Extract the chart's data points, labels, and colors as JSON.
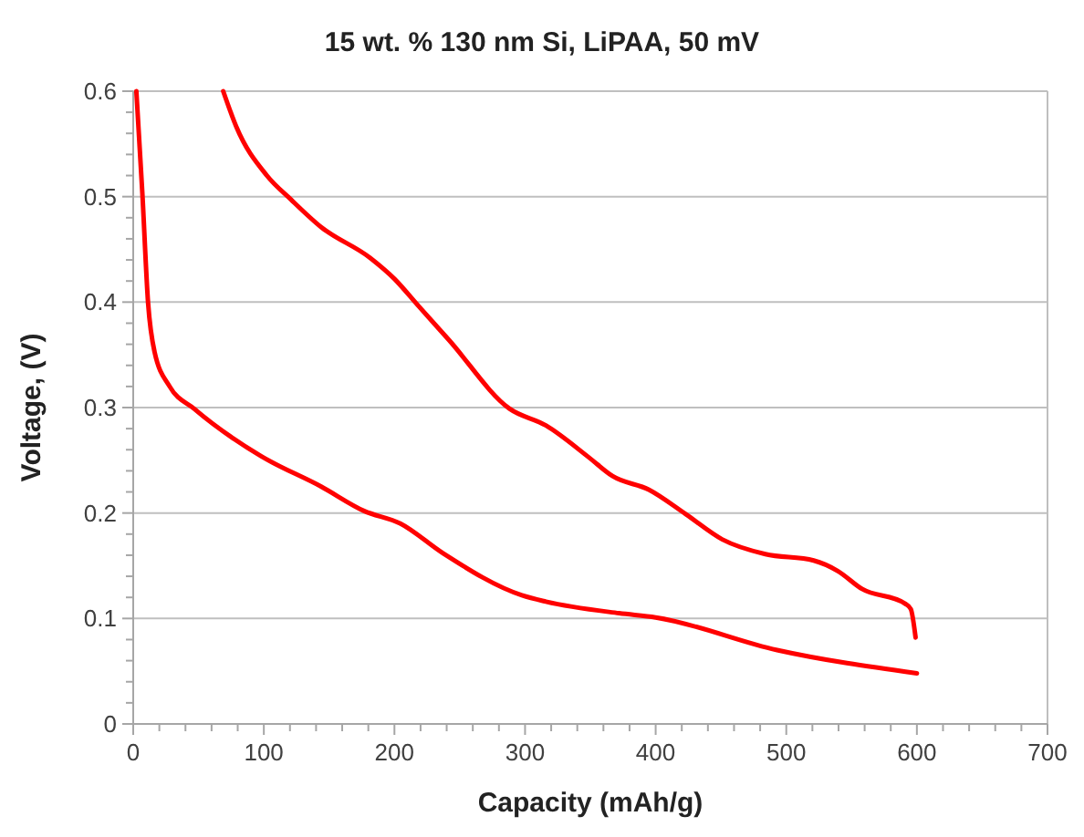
{
  "chart_data": {
    "type": "line",
    "title": "15 wt. % 130 nm Si, LiPAA, 50 mV",
    "xlabel": "Capacity (mAh/g)",
    "ylabel": "Voltage, (V)",
    "xlim": [
      0,
      700
    ],
    "ylim": [
      0,
      0.6
    ],
    "xticks": [
      0,
      {
        "value": 20,
        "label": null
      },
      {
        "value": 40,
        "label": null
      },
      {
        "value": 60,
        "label": null
      },
      {
        "value": 80,
        "label": null
      },
      100,
      {
        "value": 120,
        "label": null
      },
      {
        "value": 140,
        "label": null
      },
      {
        "value": 160,
        "label": null
      },
      {
        "value": 180,
        "label": null
      },
      200,
      {
        "value": 220,
        "label": null
      },
      {
        "value": 240,
        "label": null
      },
      {
        "value": 260,
        "label": null
      },
      {
        "value": 280,
        "label": null
      },
      300,
      {
        "value": 320,
        "label": null
      },
      {
        "value": 340,
        "label": null
      },
      {
        "value": 360,
        "label": null
      },
      {
        "value": 380,
        "label": null
      },
      400,
      {
        "value": 420,
        "label": null
      },
      {
        "value": 440,
        "label": null
      },
      {
        "value": 460,
        "label": null
      },
      {
        "value": 480,
        "label": null
      },
      500,
      {
        "value": 520,
        "label": null
      },
      {
        "value": 540,
        "label": null
      },
      {
        "value": 560,
        "label": null
      },
      {
        "value": 580,
        "label": null
      },
      600,
      {
        "value": 620,
        "label": null
      },
      {
        "value": 640,
        "label": null
      },
      {
        "value": 660,
        "label": null
      },
      {
        "value": 680,
        "label": null
      },
      700
    ],
    "yticks": [
      0,
      {
        "value": 0.02,
        "label": null
      },
      {
        "value": 0.04,
        "label": null
      },
      {
        "value": 0.06,
        "label": null
      },
      {
        "value": 0.08,
        "label": null
      },
      0.1,
      {
        "value": 0.12,
        "label": null
      },
      {
        "value": 0.14,
        "label": null
      },
      {
        "value": 0.16,
        "label": null
      },
      {
        "value": 0.18,
        "label": null
      },
      0.2,
      {
        "value": 0.22,
        "label": null
      },
      {
        "value": 0.24,
        "label": null
      },
      {
        "value": 0.26,
        "label": null
      },
      {
        "value": 0.28,
        "label": null
      },
      0.3,
      {
        "value": 0.32,
        "label": null
      },
      {
        "value": 0.34,
        "label": null
      },
      {
        "value": 0.36,
        "label": null
      },
      {
        "value": 0.38,
        "label": null
      },
      0.4,
      {
        "value": 0.42,
        "label": null
      },
      {
        "value": 0.44,
        "label": null
      },
      {
        "value": 0.46,
        "label": null
      },
      {
        "value": 0.48,
        "label": null
      },
      0.5,
      {
        "value": 0.52,
        "label": null
      },
      {
        "value": 0.54,
        "label": null
      },
      {
        "value": 0.56,
        "label": null
      },
      {
        "value": 0.58,
        "label": null
      },
      0.6
    ],
    "grid": "y",
    "marker": "none",
    "line_style": "solid",
    "series": [
      {
        "color": "#ff0000",
        "x": [
          2.4,
          7,
          11.4,
          16.3,
          27.9,
          46.5,
          97.7,
          144,
          176.7,
          204.6,
          237,
          297.6,
          316,
          372,
          400,
          493,
          600
        ],
        "values": [
          0.6,
          0.503,
          0.399,
          0.353,
          0.32,
          0.299,
          0.254,
          0.225,
          0.202,
          0.19,
          0.162,
          0.122,
          0.116,
          0.105,
          0.101,
          0.07,
          0.048
        ]
      },
      {
        "color": "#ff0000",
        "x": [
          68.9,
          79,
          102.3,
          121,
          144,
          181.3,
          200,
          218.6,
          241.8,
          288,
          316,
          348.6,
          367,
          395,
          423,
          451,
          484,
          521,
          539.5,
          558,
          591,
          595.3,
          599
        ],
        "values": [
          0.6,
          0.566,
          0.52,
          0.497,
          0.471,
          0.442,
          0.422,
          0.396,
          0.364,
          0.299,
          0.283,
          0.253,
          0.235,
          0.222,
          0.199,
          0.175,
          0.161,
          0.155,
          0.145,
          0.128,
          0.114,
          0.109,
          0.082
        ]
      }
    ]
  }
}
